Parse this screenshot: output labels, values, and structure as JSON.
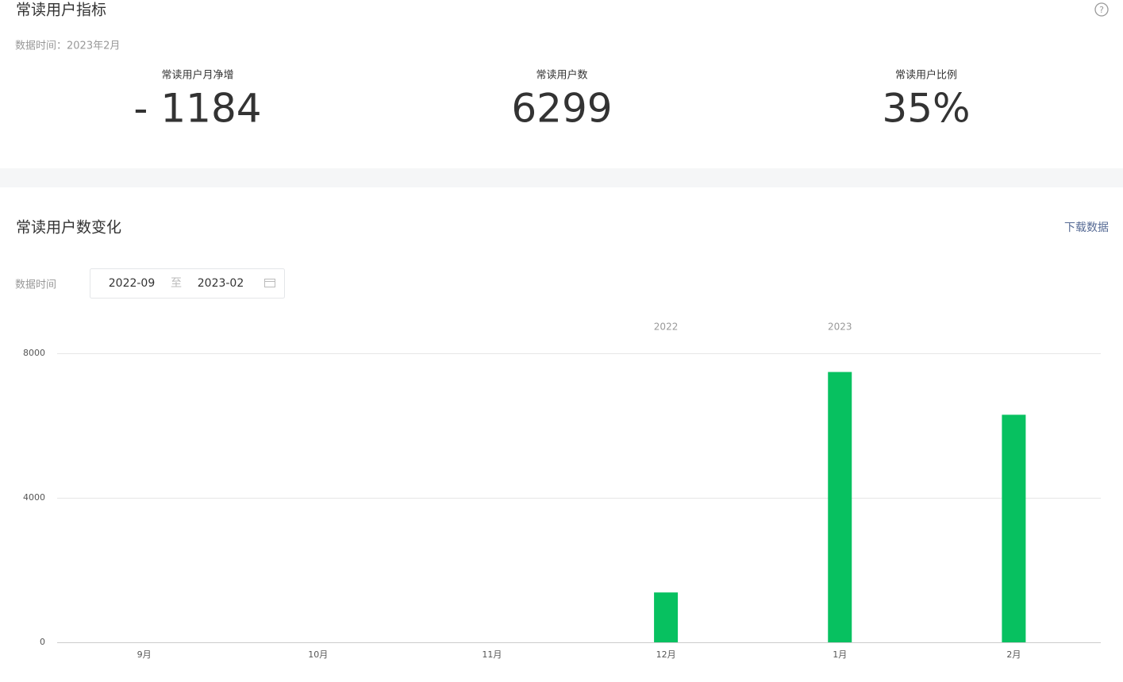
{
  "header": {
    "title": "常读用户指标",
    "data_time": "数据时间：2023年2月"
  },
  "metrics": [
    {
      "label": "常读用户月净增",
      "value": "- 1184"
    },
    {
      "label": "常读用户数",
      "value": "6299"
    },
    {
      "label": "常读用户比例",
      "value": "35%"
    }
  ],
  "trend": {
    "title": "常读用户数变化",
    "download": "下载数据",
    "filter_label": "数据时间",
    "start": "2022-09",
    "separator": "至",
    "end": "2023-02"
  },
  "chart_data": {
    "type": "bar",
    "categories": [
      "9月",
      "10月",
      "11月",
      "12月",
      "1月",
      "2月"
    ],
    "year_labels": [
      null,
      null,
      null,
      "2022",
      "2023",
      null
    ],
    "values": [
      0,
      0,
      0,
      1380,
      7483,
      6299
    ],
    "color": "#07c160",
    "ylim": [
      0,
      8000
    ],
    "yticks": [
      0,
      4000,
      8000
    ],
    "grid": true
  }
}
